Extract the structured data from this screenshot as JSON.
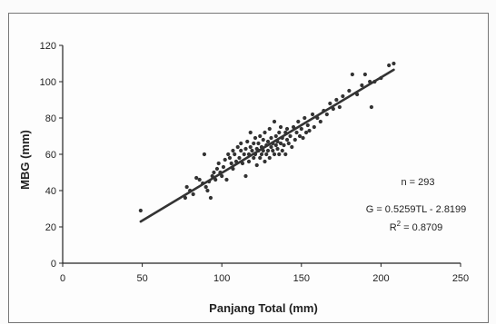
{
  "chart_data": {
    "type": "scatter",
    "xlabel": "Panjang Total (mm)",
    "ylabel": "MBG (mm)",
    "xlim": [
      0,
      250
    ],
    "ylim": [
      0,
      120
    ],
    "xticks": [
      0,
      50,
      100,
      150,
      200,
      250
    ],
    "yticks": [
      0,
      20,
      40,
      60,
      80,
      100,
      120
    ],
    "grid": false,
    "legend": "none",
    "annotations": {
      "n": "n = 293",
      "equation": "G = 0.5259TL - 2.8199",
      "r2_prefix": "R",
      "r2_sup": "2",
      "r2_value": " = 0.8709"
    },
    "trendline": {
      "slope": 0.5259,
      "intercept": -2.8199,
      "x_start": 49,
      "x_end": 208
    },
    "marker_color": "#333333",
    "line_color": "#333333",
    "points": [
      [
        49,
        29
      ],
      [
        77,
        36
      ],
      [
        78,
        42
      ],
      [
        80,
        40
      ],
      [
        82,
        38
      ],
      [
        84,
        47
      ],
      [
        86,
        46
      ],
      [
        88,
        44
      ],
      [
        89,
        60
      ],
      [
        90,
        42
      ],
      [
        91,
        40
      ],
      [
        92,
        45
      ],
      [
        93,
        36
      ],
      [
        94,
        48
      ],
      [
        95,
        50
      ],
      [
        96,
        46
      ],
      [
        97,
        52
      ],
      [
        98,
        55
      ],
      [
        99,
        50
      ],
      [
        100,
        48
      ],
      [
        101,
        53
      ],
      [
        102,
        57
      ],
      [
        103,
        46
      ],
      [
        104,
        60
      ],
      [
        105,
        58
      ],
      [
        106,
        55
      ],
      [
        107,
        52
      ],
      [
        107,
        62
      ],
      [
        108,
        60
      ],
      [
        109,
        56
      ],
      [
        110,
        64
      ],
      [
        111,
        58
      ],
      [
        112,
        62
      ],
      [
        112,
        66
      ],
      [
        113,
        55
      ],
      [
        114,
        60
      ],
      [
        115,
        63
      ],
      [
        115,
        48
      ],
      [
        116,
        67
      ],
      [
        117,
        60
      ],
      [
        117,
        56
      ],
      [
        118,
        64
      ],
      [
        118,
        72
      ],
      [
        119,
        62
      ],
      [
        120,
        58
      ],
      [
        120,
        66
      ],
      [
        121,
        60
      ],
      [
        121,
        69
      ],
      [
        122,
        63
      ],
      [
        122,
        54
      ],
      [
        123,
        66
      ],
      [
        123,
        62
      ],
      [
        124,
        70
      ],
      [
        124,
        58
      ],
      [
        125,
        64
      ],
      [
        125,
        60
      ],
      [
        126,
        68
      ],
      [
        126,
        62
      ],
      [
        127,
        56
      ],
      [
        127,
        72
      ],
      [
        128,
        65
      ],
      [
        128,
        60
      ],
      [
        129,
        67
      ],
      [
        129,
        62
      ],
      [
        130,
        74
      ],
      [
        130,
        58
      ],
      [
        131,
        64
      ],
      [
        131,
        69
      ],
      [
        132,
        62
      ],
      [
        132,
        66
      ],
      [
        133,
        78
      ],
      [
        133,
        60
      ],
      [
        134,
        65
      ],
      [
        134,
        70
      ],
      [
        135,
        63
      ],
      [
        135,
        67
      ],
      [
        136,
        72
      ],
      [
        136,
        60
      ],
      [
        137,
        66
      ],
      [
        137,
        75
      ],
      [
        138,
        62
      ],
      [
        138,
        69
      ],
      [
        139,
        65
      ],
      [
        140,
        72
      ],
      [
        140,
        60
      ],
      [
        141,
        68
      ],
      [
        141,
        74
      ],
      [
        142,
        66
      ],
      [
        143,
        70
      ],
      [
        144,
        64
      ],
      [
        145,
        75
      ],
      [
        146,
        68
      ],
      [
        147,
        72
      ],
      [
        148,
        78
      ],
      [
        149,
        70
      ],
      [
        150,
        74
      ],
      [
        151,
        69
      ],
      [
        152,
        80
      ],
      [
        153,
        72
      ],
      [
        154,
        76
      ],
      [
        155,
        73
      ],
      [
        157,
        82
      ],
      [
        158,
        75
      ],
      [
        160,
        80
      ],
      [
        162,
        78
      ],
      [
        164,
        84
      ],
      [
        166,
        82
      ],
      [
        168,
        88
      ],
      [
        170,
        85
      ],
      [
        172,
        90
      ],
      [
        174,
        86
      ],
      [
        176,
        92
      ],
      [
        180,
        95
      ],
      [
        182,
        104
      ],
      [
        185,
        93
      ],
      [
        188,
        98
      ],
      [
        190,
        104
      ],
      [
        193,
        100
      ],
      [
        194,
        86
      ],
      [
        196,
        100
      ],
      [
        200,
        102
      ],
      [
        205,
        109
      ],
      [
        208,
        110
      ]
    ]
  }
}
